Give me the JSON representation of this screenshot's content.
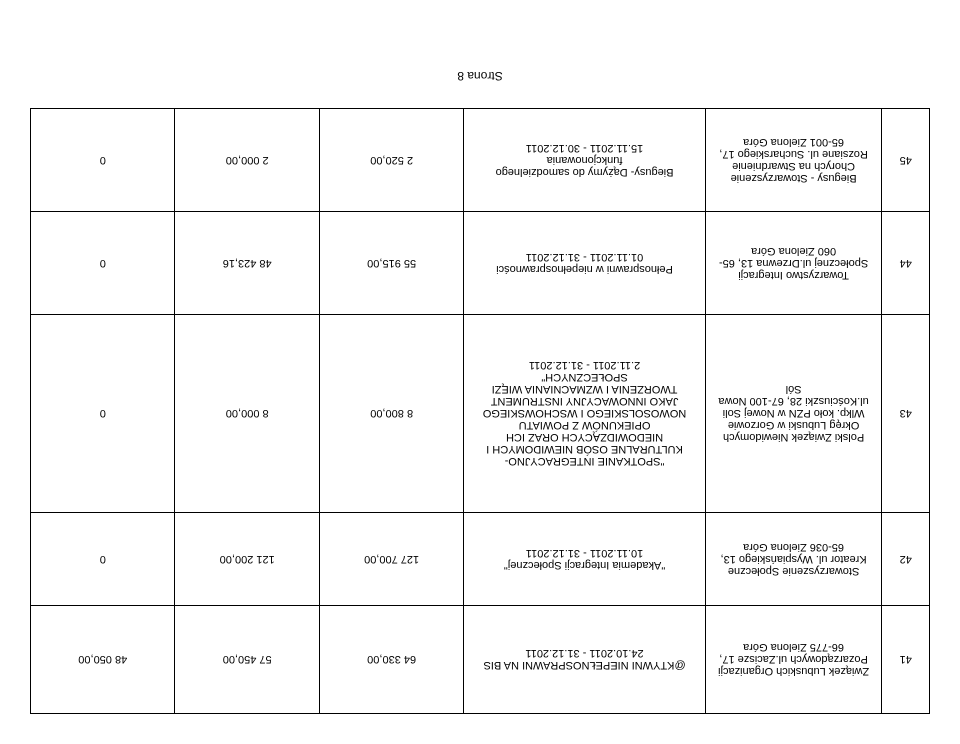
{
  "footer": "Strona 8",
  "rows": [
    {
      "no": "41",
      "org": "Związek Lubuskich Organizacji Pozarządowych ul.Zacisze 17, 66-775 Zielona Góra",
      "title": "@KTYWNI NIEPEŁNOSPRAWNI NA BIS\n24.10.2011 - 31.12.2011",
      "a1": "64 330,00",
      "a2": "57 450,00",
      "a3": "48 050,00"
    },
    {
      "no": "42",
      "org": "Stowarzyszenie Społeczne Kreator ul. Wyspiańskiego 13, 65-036 Zielona Góra",
      "title": "\"Akademia Integracji Społecznej\"\n10.11.2011 - 31.12.2011",
      "a1": "127 700,00",
      "a2": "121 200,00",
      "a3": "0"
    },
    {
      "no": "43",
      "org": "Polski Związek Niewidomych Okręg Lubuski w Gorzowie Wlkp. koło PZN w Nowej Soli ul.Kościuszki 28, 67-100 Nowa Sól",
      "title": "\"SPOTKANIE INTEGRACYJNO-KULTURALNE OSÓB NIEWIDOMYCH I NIEDOWIDZĄCYCH ORAZ ICH OPIEKUNÓW Z POWIATU NOWOSOLSKIEGO I WSCHOWSKIEGO JAKO INNOWACYJNY INSTRUMENT TWORZENIA I WZMACNIANIA WIĘZI SPOŁECZNYCH\"\n2.11.2011 - 31.12.2011",
      "a1": "8 800,00",
      "a2": "8 000,00",
      "a3": "0"
    },
    {
      "no": "44",
      "org": "Towarzystwo Integracji Społecznej ul.Drzewna 13, 65-060 Zielona Góra",
      "title": "Pełnosprawni w niepełnosprawności\n01.11.2011 - 31.12.2011",
      "a1": "55 915,00",
      "a2": "48 423,16",
      "a3": "0"
    },
    {
      "no": "45",
      "org": "Biegusy - Stowarzyszenie Chorych na Stwardnienie Rozsiane ul. Sucharskiego 17, 65-001 Zielona Góra",
      "title": "Biegusy- Dążymy do samodzielnego funkcjonowania\n15.11.2011 - 30.12.2011",
      "a1": "2 520,00",
      "a2": "2 000,00",
      "a3": "0"
    }
  ]
}
